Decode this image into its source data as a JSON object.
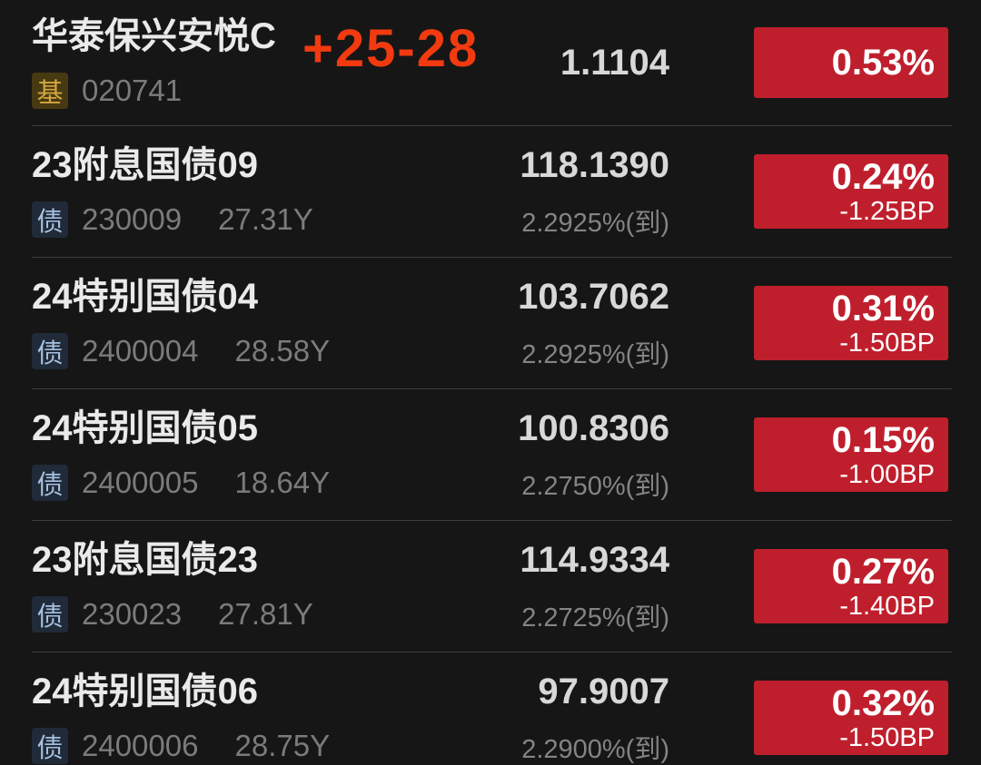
{
  "colors": {
    "up_red": "#bf1f2d",
    "annotation_red": "#f23a10",
    "fund_badge_bg": "#473a12",
    "fund_badge_text": "#d3a63f",
    "bond_badge_bg": "#202a38",
    "bond_badge_text": "#a6c0e0",
    "background": "#161616"
  },
  "annotation": "+25-28",
  "rows": [
    {
      "name": "华泰保兴安悦C",
      "type_badge": "基",
      "code": "020741",
      "value": "1.1104",
      "change_pct": "0.53%"
    },
    {
      "name": "23附息国债09",
      "type_badge": "债",
      "code": "230009",
      "years": "27.31Y",
      "value": "118.1390",
      "yield": "2.2925%(到)",
      "change_pct": "0.24%",
      "change_bp": "-1.25BP"
    },
    {
      "name": "24特别国债04",
      "type_badge": "债",
      "code": "2400004",
      "years": "28.58Y",
      "value": "103.7062",
      "yield": "2.2925%(到)",
      "change_pct": "0.31%",
      "change_bp": "-1.50BP"
    },
    {
      "name": "24特别国债05",
      "type_badge": "债",
      "code": "2400005",
      "years": "18.64Y",
      "value": "100.8306",
      "yield": "2.2750%(到)",
      "change_pct": "0.15%",
      "change_bp": "-1.00BP"
    },
    {
      "name": "23附息国债23",
      "type_badge": "债",
      "code": "230023",
      "years": "27.81Y",
      "value": "114.9334",
      "yield": "2.2725%(到)",
      "change_pct": "0.27%",
      "change_bp": "-1.40BP"
    },
    {
      "name": "24特别国债06",
      "type_badge": "债",
      "code": "2400006",
      "years": "28.75Y",
      "value": "97.9007",
      "yield": "2.2900%(到)",
      "change_pct": "0.32%",
      "change_bp": "-1.50BP"
    }
  ]
}
